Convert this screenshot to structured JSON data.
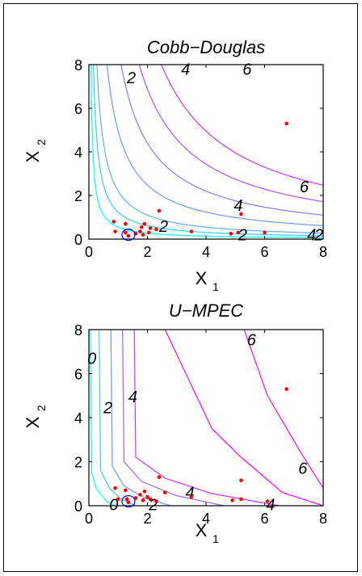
{
  "chart_data": [
    {
      "type": "scatter",
      "title": "Cobb−Douglas",
      "xlabel": "X",
      "xlabel_sub": "1",
      "ylabel": "X",
      "ylabel_sub": "2",
      "xlim": [
        0,
        8
      ],
      "ylim": [
        0,
        8
      ],
      "xticks": [
        "0",
        "2",
        "4",
        "6",
        "8"
      ],
      "yticks": [
        "0",
        "2",
        "4",
        "6",
        "8"
      ],
      "grid": false,
      "contour_levels": [
        1.0,
        1.5,
        2,
        3,
        4,
        5,
        6
      ],
      "contour_labels": [
        {
          "text": "2",
          "x": 1.45,
          "y": 7.4
        },
        {
          "text": "4",
          "x": 3.3,
          "y": 7.8
        },
        {
          "text": "6",
          "x": 5.4,
          "y": 7.8
        },
        {
          "text": "6",
          "x": 7.35,
          "y": 2.4
        },
        {
          "text": "4",
          "x": 5.1,
          "y": 1.55
        },
        {
          "text": "2",
          "x": 2.55,
          "y": 0.6
        },
        {
          "text": "2",
          "x": 5.25,
          "y": 0.2
        },
        {
          "text": "4",
          "x": 7.6,
          "y": 0.2
        },
        {
          "text": "2",
          "x": 7.85,
          "y": 0.2
        }
      ],
      "points": [
        [
          0.85,
          0.8
        ],
        [
          0.9,
          0.35
        ],
        [
          1.25,
          0.7
        ],
        [
          1.25,
          0.3
        ],
        [
          1.35,
          0.15
        ],
        [
          1.6,
          0.25
        ],
        [
          1.75,
          0.35
        ],
        [
          1.8,
          0.55
        ],
        [
          1.85,
          0.2
        ],
        [
          1.9,
          0.7
        ],
        [
          2.05,
          0.3
        ],
        [
          2.1,
          0.5
        ],
        [
          2.3,
          0.45
        ],
        [
          2.4,
          1.3
        ],
        [
          3.5,
          0.35
        ],
        [
          4.85,
          0.25
        ],
        [
          5.1,
          0.3
        ],
        [
          5.2,
          1.15
        ],
        [
          6.0,
          0.3
        ],
        [
          6.75,
          5.3
        ]
      ],
      "highlight_circle": {
        "x": 1.35,
        "y": 0.2
      }
    },
    {
      "type": "scatter",
      "title": "U−MPEC",
      "xlabel": "X",
      "xlabel_sub": "1",
      "ylabel": "X",
      "ylabel_sub": "2",
      "xlim": [
        0,
        8
      ],
      "ylim": [
        0,
        8
      ],
      "xticks": [
        "0",
        "2",
        "4",
        "6",
        "8"
      ],
      "yticks": [
        "0",
        "2",
        "4",
        "6",
        "8"
      ],
      "grid": false,
      "contour_labels": [
        {
          "text": "0",
          "x": 0.1,
          "y": 6.7
        },
        {
          "text": "2",
          "x": 0.65,
          "y": 4.45
        },
        {
          "text": "4",
          "x": 1.5,
          "y": 4.95
        },
        {
          "text": "6",
          "x": 5.55,
          "y": 7.55
        },
        {
          "text": "6",
          "x": 7.3,
          "y": 1.7
        },
        {
          "text": "4",
          "x": 3.45,
          "y": 0.6
        },
        {
          "text": "0",
          "x": 0.85,
          "y": 0.05
        },
        {
          "text": "2",
          "x": 2.2,
          "y": 0.05
        },
        {
          "text": "4",
          "x": 6.2,
          "y": 0.05
        }
      ],
      "points": [
        [
          0.9,
          0.8
        ],
        [
          1.0,
          0.3
        ],
        [
          1.25,
          0.7
        ],
        [
          1.3,
          0.3
        ],
        [
          1.35,
          0.15
        ],
        [
          1.6,
          0.35
        ],
        [
          1.75,
          0.5
        ],
        [
          1.85,
          0.25
        ],
        [
          1.9,
          0.65
        ],
        [
          2.0,
          0.4
        ],
        [
          2.1,
          0.3
        ],
        [
          2.3,
          0.2
        ],
        [
          2.4,
          1.3
        ],
        [
          2.6,
          0.6
        ],
        [
          3.5,
          0.4
        ],
        [
          4.9,
          0.25
        ],
        [
          5.2,
          0.3
        ],
        [
          5.2,
          1.15
        ],
        [
          6.1,
          0.2
        ],
        [
          6.75,
          5.3
        ]
      ],
      "highlight_circle": {
        "x": 1.35,
        "y": 0.2
      },
      "contours": [
        {
          "color": "#00ffff",
          "points": [
            [
              0.05,
              8
            ],
            [
              0.1,
              1.5
            ],
            [
              0.25,
              0.8
            ],
            [
              0.6,
              0.2
            ],
            [
              0.9,
              0
            ]
          ]
        },
        {
          "color": "#33ccff",
          "points": [
            [
              0.35,
              8
            ],
            [
              0.4,
              1.6
            ],
            [
              0.7,
              0.8
            ],
            [
              1.1,
              0.3
            ],
            [
              1.6,
              0
            ]
          ]
        },
        {
          "color": "#6699ff",
          "points": [
            [
              0.75,
              8
            ],
            [
              0.8,
              1.8
            ],
            [
              1.2,
              0.9
            ],
            [
              1.9,
              0.35
            ],
            [
              2.8,
              0
            ]
          ]
        },
        {
          "color": "#9966ff",
          "points": [
            [
              1.15,
              8
            ],
            [
              1.2,
              2.0
            ],
            [
              1.8,
              1.1
            ],
            [
              3.0,
              0.45
            ],
            [
              4.6,
              0
            ]
          ]
        },
        {
          "color": "#cc33ff",
          "points": [
            [
              1.55,
              8
            ],
            [
              1.6,
              2.2
            ],
            [
              2.6,
              1.25
            ],
            [
              4.2,
              0.55
            ],
            [
              6.5,
              0
            ]
          ]
        },
        {
          "color": "#ff00ff",
          "points": [
            [
              2.6,
              8
            ],
            [
              4.2,
              3.5
            ],
            [
              5.2,
              2.2
            ],
            [
              6.6,
              0.6
            ],
            [
              8,
              0
            ]
          ]
        },
        {
          "color": "#ff00ff",
          "points": [
            [
              5.3,
              8
            ],
            [
              6.1,
              5.0
            ],
            [
              7.2,
              2.5
            ],
            [
              8,
              0.8
            ]
          ]
        }
      ]
    }
  ]
}
